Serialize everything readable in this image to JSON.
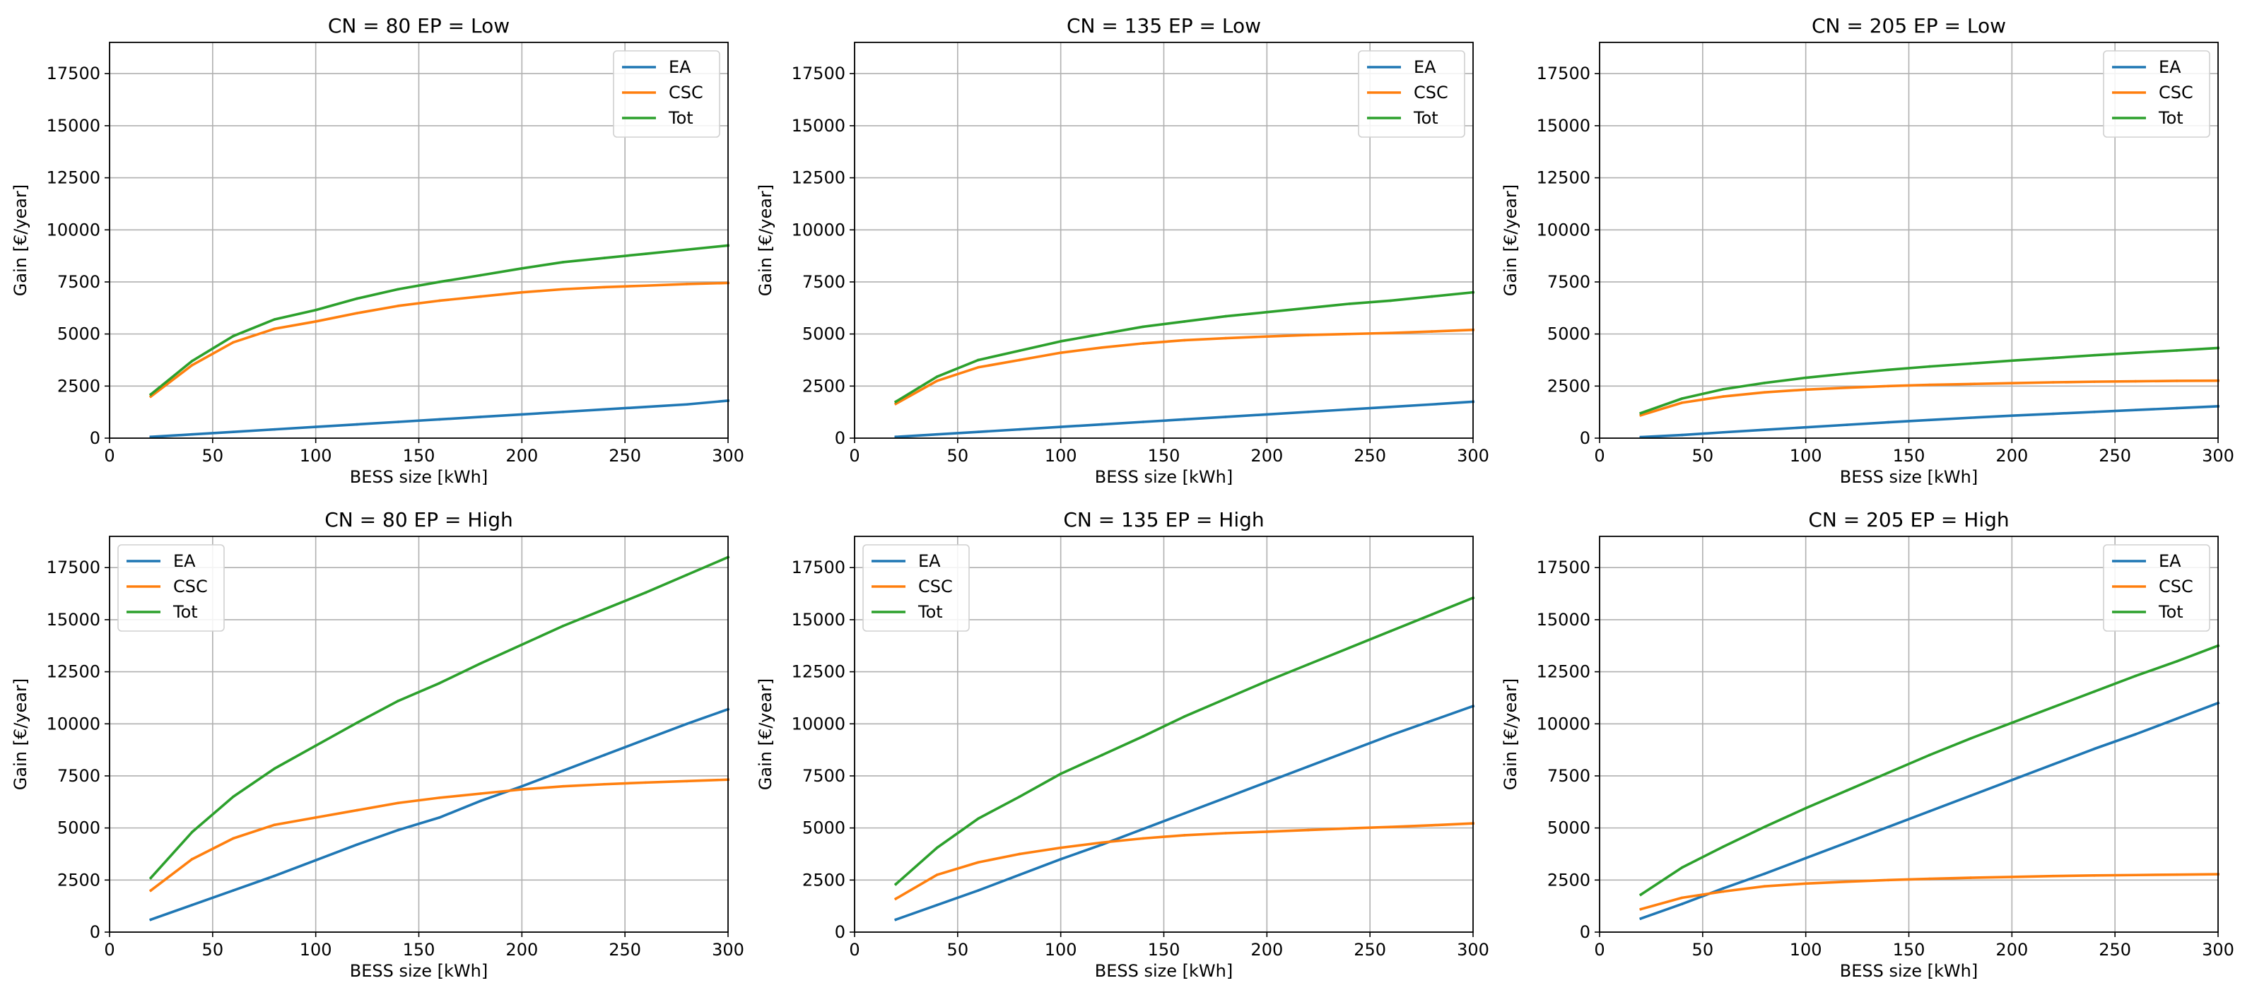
{
  "figure": {
    "background": "#ffffff",
    "grid_color": "#b0b0b0"
  },
  "series_colors": {
    "EA": "#1f77b4",
    "CSC": "#ff7f0e",
    "Tot": "#2ca02c"
  },
  "chart_data": [
    {
      "type": "line",
      "title": "CN = 80 EP = Low",
      "xlabel": "BESS size [kWh]",
      "ylabel": "Gain [€/year]",
      "xlim": [
        0,
        300
      ],
      "ylim": [
        0,
        19000
      ],
      "xticks": [
        0,
        50,
        100,
        150,
        200,
        250,
        300
      ],
      "yticks": [
        0,
        2500,
        5000,
        7500,
        10000,
        12500,
        15000,
        17500
      ],
      "grid": true,
      "legend_position": "top-right",
      "x": [
        20,
        40,
        60,
        80,
        100,
        120,
        140,
        160,
        180,
        200,
        220,
        240,
        260,
        280,
        300
      ],
      "series": [
        {
          "name": "EA",
          "values": [
            60,
            180,
            300,
            420,
            540,
            660,
            780,
            900,
            1020,
            1140,
            1260,
            1380,
            1500,
            1620,
            1800
          ]
        },
        {
          "name": "CSC",
          "values": [
            2000,
            3500,
            4600,
            5250,
            5600,
            6000,
            6350,
            6600,
            6800,
            7000,
            7150,
            7250,
            7320,
            7400,
            7450
          ]
        },
        {
          "name": "Tot",
          "values": [
            2100,
            3700,
            4900,
            5700,
            6150,
            6700,
            7150,
            7500,
            7820,
            8150,
            8450,
            8650,
            8850,
            9050,
            9250
          ]
        }
      ]
    },
    {
      "type": "line",
      "title": "CN = 135 EP = Low",
      "xlabel": "BESS size [kWh]",
      "ylabel": "Gain [€/year]",
      "xlim": [
        0,
        300
      ],
      "ylim": [
        0,
        19000
      ],
      "xticks": [
        0,
        50,
        100,
        150,
        200,
        250,
        300
      ],
      "yticks": [
        0,
        2500,
        5000,
        7500,
        10000,
        12500,
        15000,
        17500
      ],
      "grid": true,
      "legend_position": "top-right",
      "x": [
        20,
        40,
        60,
        80,
        100,
        120,
        140,
        160,
        180,
        200,
        220,
        240,
        260,
        280,
        300
      ],
      "series": [
        {
          "name": "EA",
          "values": [
            60,
            180,
            300,
            420,
            540,
            660,
            780,
            900,
            1020,
            1140,
            1260,
            1380,
            1500,
            1620,
            1750
          ]
        },
        {
          "name": "CSC",
          "values": [
            1650,
            2750,
            3400,
            3750,
            4100,
            4350,
            4550,
            4700,
            4800,
            4880,
            4950,
            5000,
            5050,
            5120,
            5200
          ]
        },
        {
          "name": "Tot",
          "values": [
            1750,
            2950,
            3750,
            4200,
            4650,
            5000,
            5350,
            5600,
            5850,
            6050,
            6250,
            6450,
            6600,
            6800,
            7000
          ]
        }
      ]
    },
    {
      "type": "line",
      "title": "CN = 205 EP = Low",
      "xlabel": "BESS size [kWh]",
      "ylabel": "Gain [€/year]",
      "xlim": [
        0,
        300
      ],
      "ylim": [
        0,
        19000
      ],
      "xticks": [
        0,
        50,
        100,
        150,
        200,
        250,
        300
      ],
      "yticks": [
        0,
        2500,
        5000,
        7500,
        10000,
        12500,
        15000,
        17500
      ],
      "grid": true,
      "legend_position": "top-right",
      "x": [
        20,
        40,
        60,
        80,
        100,
        120,
        140,
        160,
        180,
        200,
        220,
        240,
        260,
        280,
        300
      ],
      "series": [
        {
          "name": "EA",
          "values": [
            50,
            150,
            280,
            400,
            520,
            640,
            760,
            870,
            980,
            1080,
            1170,
            1260,
            1350,
            1440,
            1530
          ]
        },
        {
          "name": "CSC",
          "values": [
            1100,
            1700,
            2000,
            2200,
            2330,
            2420,
            2500,
            2560,
            2600,
            2640,
            2680,
            2710,
            2730,
            2750,
            2760
          ]
        },
        {
          "name": "Tot",
          "values": [
            1200,
            1900,
            2350,
            2650,
            2900,
            3100,
            3280,
            3440,
            3580,
            3720,
            3850,
            3980,
            4100,
            4210,
            4330
          ]
        }
      ]
    },
    {
      "type": "line",
      "title": "CN = 80 EP = High",
      "xlabel": "BESS size [kWh]",
      "ylabel": "Gain [€/year]",
      "xlim": [
        0,
        300
      ],
      "ylim": [
        0,
        19000
      ],
      "xticks": [
        0,
        50,
        100,
        150,
        200,
        250,
        300
      ],
      "yticks": [
        0,
        2500,
        5000,
        7500,
        10000,
        12500,
        15000,
        17500
      ],
      "grid": true,
      "legend_position": "top-left",
      "x": [
        20,
        40,
        60,
        80,
        100,
        120,
        140,
        160,
        180,
        200,
        220,
        240,
        260,
        280,
        300
      ],
      "series": [
        {
          "name": "EA",
          "values": [
            600,
            1300,
            2000,
            2700,
            3450,
            4200,
            4900,
            5500,
            6300,
            7000,
            7750,
            8500,
            9250,
            10000,
            10700
          ]
        },
        {
          "name": "CSC",
          "values": [
            2000,
            3500,
            4500,
            5150,
            5500,
            5850,
            6200,
            6450,
            6650,
            6850,
            7000,
            7100,
            7180,
            7250,
            7320
          ]
        },
        {
          "name": "Tot",
          "values": [
            2600,
            4800,
            6500,
            7850,
            8950,
            10050,
            11100,
            11950,
            12900,
            13800,
            14700,
            15500,
            16300,
            17150,
            18000
          ]
        }
      ]
    },
    {
      "type": "line",
      "title": "CN = 135 EP = High",
      "xlabel": "BESS size [kWh]",
      "ylabel": "Gain [€/year]",
      "xlim": [
        0,
        300
      ],
      "ylim": [
        0,
        19000
      ],
      "xticks": [
        0,
        50,
        100,
        150,
        200,
        250,
        300
      ],
      "yticks": [
        0,
        2500,
        5000,
        7500,
        10000,
        12500,
        15000,
        17500
      ],
      "grid": true,
      "legend_position": "top-left",
      "x": [
        20,
        40,
        60,
        80,
        100,
        120,
        140,
        160,
        180,
        200,
        220,
        240,
        260,
        280,
        300
      ],
      "series": [
        {
          "name": "EA",
          "values": [
            600,
            1300,
            2000,
            2750,
            3500,
            4200,
            4950,
            5700,
            6450,
            7200,
            7950,
            8700,
            9450,
            10150,
            10850
          ]
        },
        {
          "name": "CSC",
          "values": [
            1600,
            2750,
            3350,
            3750,
            4050,
            4300,
            4500,
            4650,
            4750,
            4820,
            4900,
            4980,
            5050,
            5130,
            5220
          ]
        },
        {
          "name": "Tot",
          "values": [
            2300,
            4050,
            5450,
            6500,
            7600,
            8500,
            9400,
            10350,
            11200,
            12050,
            12850,
            13650,
            14450,
            15250,
            16050
          ]
        }
      ]
    },
    {
      "type": "line",
      "title": "CN = 205 EP = High",
      "xlabel": "BESS size [kWh]",
      "ylabel": "Gain [€/year]",
      "xlim": [
        0,
        300
      ],
      "ylim": [
        0,
        19000
      ],
      "xticks": [
        0,
        50,
        100,
        150,
        200,
        250,
        300
      ],
      "yticks": [
        0,
        2500,
        5000,
        7500,
        10000,
        12500,
        15000,
        17500
      ],
      "grid": true,
      "legend_position": "top-right",
      "x": [
        20,
        40,
        60,
        80,
        100,
        120,
        140,
        160,
        180,
        200,
        220,
        240,
        260,
        280,
        300
      ],
      "series": [
        {
          "name": "EA",
          "values": [
            650,
            1350,
            2100,
            2800,
            3550,
            4300,
            5050,
            5800,
            6550,
            7300,
            8050,
            8800,
            9500,
            10250,
            11000
          ]
        },
        {
          "name": "CSC",
          "values": [
            1100,
            1650,
            1950,
            2200,
            2330,
            2420,
            2500,
            2560,
            2610,
            2650,
            2690,
            2720,
            2740,
            2760,
            2780
          ]
        },
        {
          "name": "Tot",
          "values": [
            1800,
            3100,
            4100,
            5050,
            5950,
            6800,
            7650,
            8500,
            9300,
            10050,
            10800,
            11550,
            12300,
            13000,
            13750
          ]
        }
      ]
    }
  ]
}
